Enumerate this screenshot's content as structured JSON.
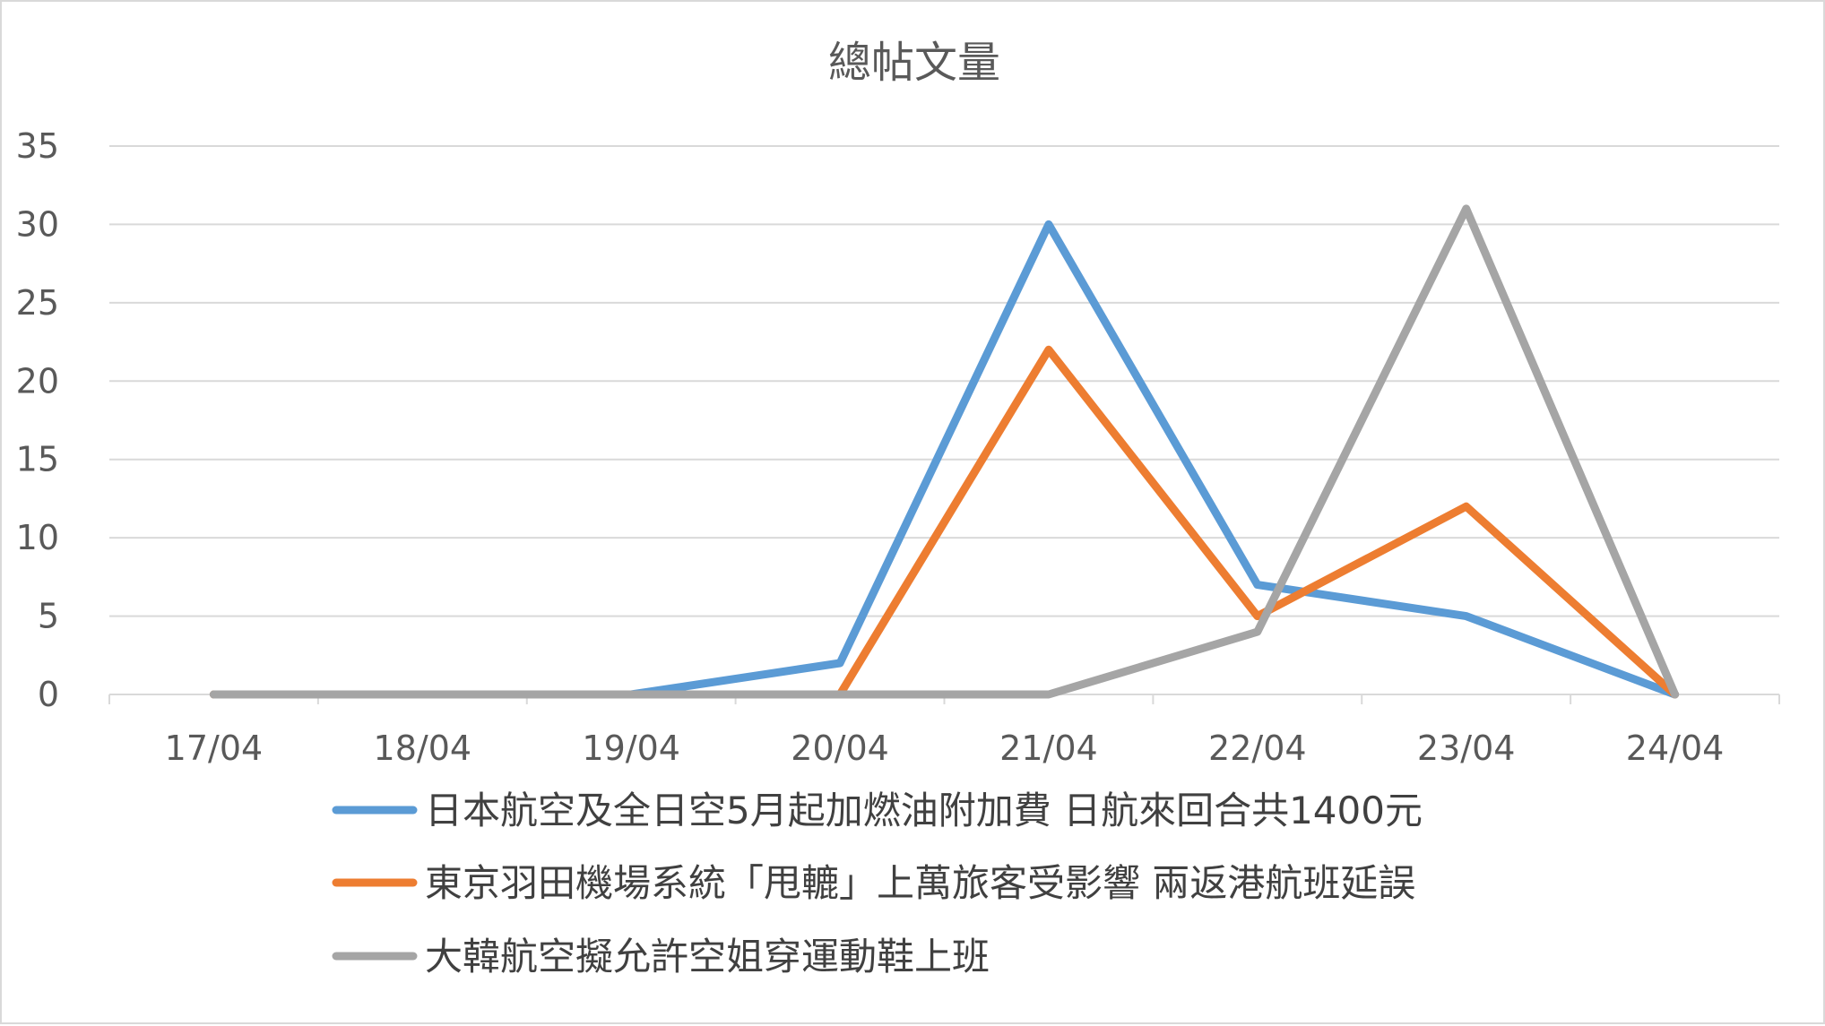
{
  "chart_data": {
    "type": "line",
    "title": "總帖文量",
    "xlabel": "",
    "ylabel": "",
    "categories": [
      "17/04",
      "18/04",
      "19/04",
      "20/04",
      "21/04",
      "22/04",
      "23/04",
      "24/04"
    ],
    "ylim": [
      0,
      35
    ],
    "yticks": [
      0,
      5,
      10,
      15,
      20,
      25,
      30,
      35
    ],
    "grid": true,
    "legend_position": "bottom",
    "series": [
      {
        "name": "日本航空及全日空5月起加燃油附加費 日航來回合共1400元",
        "color": "#5b9bd5",
        "values": [
          0,
          0,
          0,
          2,
          30,
          7,
          5,
          0
        ]
      },
      {
        "name": "東京羽田機場系統「甩轆」上萬旅客受影響 兩返港航班延誤",
        "color": "#ed7d31",
        "values": [
          0,
          0,
          0,
          0,
          22,
          5,
          12,
          0
        ]
      },
      {
        "name": "大韓航空擬允許空姐穿運動鞋上班",
        "color": "#a5a5a5",
        "values": [
          0,
          0,
          0,
          0,
          0,
          4,
          31,
          0
        ]
      }
    ]
  }
}
